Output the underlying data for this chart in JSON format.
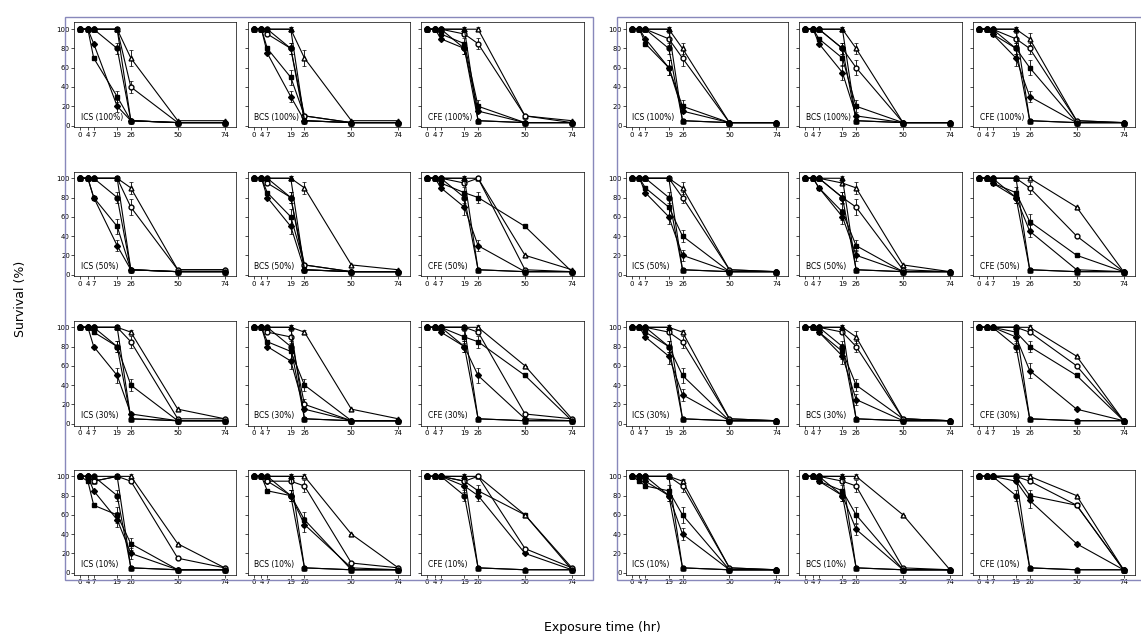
{
  "x_ticks": [
    0,
    4,
    7,
    19,
    26,
    50,
    74
  ],
  "x_vals": [
    0,
    4,
    7,
    19,
    26,
    50,
    74
  ],
  "ylabel": "Survival (%)",
  "xlabel": "Exposure time (hr)",
  "ylim": [
    -2,
    107
  ],
  "yticks": [
    0,
    20,
    40,
    60,
    80,
    100
  ],
  "concentrations": [
    "100",
    "50",
    "30",
    "10"
  ],
  "col_keys": [
    "ICS",
    "BCS",
    "CFE"
  ],
  "series_configs": [
    {
      "marker": "o",
      "mfc": "black",
      "mec": "black",
      "ms": 3.5,
      "ls": "-",
      "lw": 0.8
    },
    {
      "marker": "^",
      "mfc": "black",
      "mec": "black",
      "ms": 3.5,
      "ls": "-",
      "lw": 0.8
    },
    {
      "marker": "o",
      "mfc": "white",
      "mec": "black",
      "ms": 3.5,
      "ls": "-",
      "lw": 0.8
    },
    {
      "marker": "^",
      "mfc": "white",
      "mec": "black",
      "ms": 3.5,
      "ls": "-",
      "lw": 0.8
    },
    {
      "marker": "s",
      "mfc": "black",
      "mec": "black",
      "ms": 3.5,
      "ls": "-",
      "lw": 0.8
    },
    {
      "marker": "D",
      "mfc": "black",
      "mec": "black",
      "ms": 3.0,
      "ls": "-",
      "lw": 0.8
    }
  ],
  "box_color": "#8888bb",
  "left_data": {
    "ICS_100": [
      [
        100,
        100,
        100,
        80,
        5,
        3,
        3
      ],
      [
        100,
        100,
        100,
        100,
        5,
        3,
        3
      ],
      [
        100,
        100,
        100,
        100,
        40,
        3,
        3
      ],
      [
        100,
        100,
        100,
        100,
        70,
        5,
        5
      ],
      [
        100,
        100,
        70,
        30,
        5,
        3,
        3
      ],
      [
        100,
        100,
        85,
        20,
        5,
        3,
        3
      ]
    ],
    "BCS_100": [
      [
        100,
        100,
        100,
        80,
        5,
        3,
        3
      ],
      [
        100,
        100,
        100,
        100,
        5,
        3,
        3
      ],
      [
        100,
        100,
        95,
        80,
        10,
        3,
        3
      ],
      [
        100,
        100,
        100,
        100,
        70,
        5,
        5
      ],
      [
        100,
        100,
        80,
        50,
        10,
        3,
        3
      ],
      [
        100,
        100,
        75,
        30,
        5,
        3,
        3
      ]
    ],
    "CFE_100": [
      [
        100,
        100,
        100,
        80,
        5,
        3,
        3
      ],
      [
        100,
        100,
        100,
        100,
        5,
        3,
        3
      ],
      [
        100,
        100,
        100,
        95,
        85,
        10,
        3
      ],
      [
        100,
        100,
        100,
        100,
        100,
        10,
        5
      ],
      [
        100,
        100,
        95,
        85,
        20,
        3,
        3
      ],
      [
        100,
        100,
        90,
        80,
        15,
        3,
        3
      ]
    ],
    "ICS_50": [
      [
        100,
        100,
        100,
        80,
        5,
        3,
        3
      ],
      [
        100,
        100,
        100,
        100,
        5,
        3,
        3
      ],
      [
        100,
        100,
        100,
        100,
        70,
        5,
        5
      ],
      [
        100,
        100,
        100,
        100,
        90,
        5,
        5
      ],
      [
        100,
        100,
        80,
        50,
        5,
        3,
        3
      ],
      [
        100,
        100,
        80,
        30,
        5,
        3,
        3
      ]
    ],
    "BCS_50": [
      [
        100,
        100,
        100,
        80,
        5,
        3,
        3
      ],
      [
        100,
        100,
        100,
        100,
        5,
        3,
        3
      ],
      [
        100,
        100,
        95,
        80,
        10,
        3,
        3
      ],
      [
        100,
        100,
        100,
        100,
        90,
        10,
        5
      ],
      [
        100,
        100,
        85,
        60,
        10,
        3,
        3
      ],
      [
        100,
        100,
        80,
        50,
        5,
        3,
        3
      ]
    ],
    "CFE_50": [
      [
        100,
        100,
        100,
        80,
        5,
        3,
        3
      ],
      [
        100,
        100,
        100,
        100,
        5,
        3,
        3
      ],
      [
        100,
        100,
        100,
        95,
        100,
        5,
        3
      ],
      [
        100,
        100,
        100,
        100,
        100,
        20,
        5
      ],
      [
        100,
        100,
        95,
        85,
        80,
        50,
        3
      ],
      [
        100,
        100,
        90,
        70,
        30,
        3,
        3
      ]
    ],
    "ICS_30": [
      [
        100,
        100,
        100,
        80,
        5,
        3,
        3
      ],
      [
        100,
        100,
        100,
        100,
        5,
        3,
        3
      ],
      [
        100,
        100,
        100,
        100,
        85,
        5,
        5
      ],
      [
        100,
        100,
        100,
        100,
        95,
        15,
        5
      ],
      [
        100,
        100,
        95,
        80,
        40,
        3,
        3
      ],
      [
        100,
        100,
        80,
        50,
        10,
        3,
        3
      ]
    ],
    "BCS_30": [
      [
        100,
        100,
        100,
        80,
        5,
        3,
        3
      ],
      [
        100,
        100,
        100,
        100,
        5,
        3,
        3
      ],
      [
        100,
        100,
        95,
        90,
        20,
        3,
        3
      ],
      [
        100,
        100,
        100,
        100,
        95,
        15,
        5
      ],
      [
        100,
        100,
        85,
        75,
        40,
        3,
        3
      ],
      [
        100,
        100,
        80,
        65,
        15,
        3,
        3
      ]
    ],
    "CFE_30": [
      [
        100,
        100,
        100,
        80,
        5,
        3,
        3
      ],
      [
        100,
        100,
        100,
        100,
        5,
        3,
        3
      ],
      [
        100,
        100,
        100,
        100,
        95,
        10,
        5
      ],
      [
        100,
        100,
        100,
        100,
        100,
        60,
        5
      ],
      [
        100,
        100,
        100,
        90,
        85,
        50,
        3
      ],
      [
        100,
        100,
        95,
        80,
        50,
        5,
        3
      ]
    ],
    "ICS_10": [
      [
        100,
        100,
        100,
        80,
        5,
        3,
        3
      ],
      [
        100,
        100,
        100,
        100,
        5,
        3,
        3
      ],
      [
        100,
        100,
        95,
        100,
        95,
        15,
        5
      ],
      [
        100,
        100,
        95,
        100,
        100,
        30,
        5
      ],
      [
        100,
        95,
        70,
        60,
        30,
        3,
        3
      ],
      [
        100,
        100,
        85,
        55,
        20,
        3,
        3
      ]
    ],
    "BCS_10": [
      [
        100,
        100,
        100,
        80,
        5,
        3,
        3
      ],
      [
        100,
        100,
        100,
        100,
        5,
        3,
        3
      ],
      [
        100,
        100,
        95,
        95,
        90,
        10,
        5
      ],
      [
        100,
        100,
        100,
        100,
        100,
        40,
        5
      ],
      [
        100,
        100,
        85,
        80,
        55,
        3,
        3
      ],
      [
        100,
        100,
        95,
        80,
        50,
        5,
        3
      ]
    ],
    "CFE_10": [
      [
        100,
        100,
        100,
        80,
        5,
        3,
        3
      ],
      [
        100,
        100,
        100,
        100,
        5,
        3,
        3
      ],
      [
        100,
        100,
        100,
        95,
        100,
        25,
        5
      ],
      [
        100,
        100,
        100,
        100,
        100,
        60,
        5
      ],
      [
        100,
        100,
        100,
        95,
        85,
        60,
        3
      ],
      [
        100,
        100,
        100,
        90,
        80,
        20,
        3
      ]
    ]
  },
  "right_data": {
    "ICS_100": [
      [
        100,
        100,
        100,
        80,
        5,
        3,
        3
      ],
      [
        100,
        100,
        100,
        100,
        5,
        3,
        3
      ],
      [
        100,
        100,
        100,
        90,
        70,
        3,
        3
      ],
      [
        100,
        100,
        100,
        100,
        80,
        3,
        3
      ],
      [
        100,
        100,
        85,
        60,
        20,
        3,
        3
      ],
      [
        100,
        100,
        90,
        60,
        15,
        3,
        3
      ]
    ],
    "BCS_100": [
      [
        100,
        100,
        100,
        80,
        5,
        3,
        3
      ],
      [
        100,
        100,
        100,
        100,
        5,
        3,
        3
      ],
      [
        100,
        100,
        100,
        80,
        60,
        3,
        3
      ],
      [
        100,
        100,
        100,
        100,
        80,
        3,
        3
      ],
      [
        100,
        100,
        90,
        70,
        20,
        3,
        3
      ],
      [
        100,
        100,
        85,
        55,
        10,
        3,
        3
      ]
    ],
    "CFE_100": [
      [
        100,
        100,
        100,
        80,
        5,
        3,
        3
      ],
      [
        100,
        100,
        100,
        100,
        5,
        3,
        3
      ],
      [
        100,
        100,
        100,
        90,
        80,
        5,
        3
      ],
      [
        100,
        100,
        100,
        100,
        90,
        5,
        3
      ],
      [
        100,
        100,
        95,
        80,
        60,
        3,
        3
      ],
      [
        100,
        100,
        95,
        70,
        30,
        3,
        3
      ]
    ],
    "ICS_50": [
      [
        100,
        100,
        100,
        80,
        5,
        3,
        3
      ],
      [
        100,
        100,
        100,
        100,
        5,
        3,
        3
      ],
      [
        100,
        100,
        100,
        100,
        80,
        5,
        3
      ],
      [
        100,
        100,
        100,
        100,
        90,
        5,
        3
      ],
      [
        100,
        100,
        90,
        70,
        40,
        3,
        3
      ],
      [
        100,
        100,
        85,
        60,
        20,
        3,
        3
      ]
    ],
    "BCS_50": [
      [
        100,
        100,
        100,
        80,
        5,
        3,
        3
      ],
      [
        100,
        100,
        100,
        100,
        5,
        3,
        3
      ],
      [
        100,
        100,
        100,
        80,
        70,
        5,
        3
      ],
      [
        100,
        100,
        100,
        95,
        90,
        10,
        3
      ],
      [
        100,
        100,
        90,
        65,
        30,
        3,
        3
      ],
      [
        100,
        100,
        90,
        60,
        20,
        3,
        3
      ]
    ],
    "CFE_50": [
      [
        100,
        100,
        100,
        80,
        5,
        3,
        3
      ],
      [
        100,
        100,
        100,
        100,
        5,
        3,
        3
      ],
      [
        100,
        100,
        100,
        100,
        90,
        40,
        3
      ],
      [
        100,
        100,
        100,
        100,
        100,
        70,
        3
      ],
      [
        100,
        100,
        95,
        85,
        55,
        20,
        3
      ],
      [
        100,
        100,
        95,
        80,
        45,
        5,
        3
      ]
    ],
    "ICS_30": [
      [
        100,
        100,
        100,
        80,
        5,
        3,
        3
      ],
      [
        100,
        100,
        100,
        100,
        5,
        3,
        3
      ],
      [
        100,
        100,
        100,
        95,
        85,
        5,
        3
      ],
      [
        100,
        100,
        100,
        100,
        95,
        5,
        3
      ],
      [
        100,
        100,
        95,
        80,
        50,
        3,
        3
      ],
      [
        100,
        100,
        90,
        70,
        30,
        3,
        3
      ]
    ],
    "BCS_30": [
      [
        100,
        100,
        100,
        80,
        5,
        3,
        3
      ],
      [
        100,
        100,
        100,
        100,
        5,
        3,
        3
      ],
      [
        100,
        100,
        100,
        95,
        80,
        5,
        3
      ],
      [
        100,
        100,
        100,
        100,
        90,
        5,
        3
      ],
      [
        100,
        100,
        95,
        75,
        40,
        5,
        3
      ],
      [
        100,
        100,
        95,
        70,
        25,
        3,
        3
      ]
    ],
    "CFE_30": [
      [
        100,
        100,
        100,
        80,
        5,
        3,
        3
      ],
      [
        100,
        100,
        100,
        100,
        5,
        3,
        3
      ],
      [
        100,
        100,
        100,
        100,
        95,
        60,
        3
      ],
      [
        100,
        100,
        100,
        100,
        100,
        70,
        3
      ],
      [
        100,
        100,
        100,
        95,
        80,
        50,
        3
      ],
      [
        100,
        100,
        100,
        90,
        55,
        15,
        3
      ]
    ],
    "ICS_10": [
      [
        100,
        100,
        100,
        80,
        5,
        3,
        3
      ],
      [
        100,
        100,
        100,
        100,
        5,
        3,
        3
      ],
      [
        100,
        100,
        100,
        100,
        90,
        5,
        3
      ],
      [
        100,
        100,
        100,
        100,
        95,
        5,
        3
      ],
      [
        100,
        95,
        90,
        85,
        60,
        3,
        3
      ],
      [
        100,
        100,
        95,
        80,
        40,
        3,
        3
      ]
    ],
    "BCS_10": [
      [
        100,
        100,
        100,
        80,
        5,
        3,
        3
      ],
      [
        100,
        100,
        100,
        100,
        5,
        3,
        3
      ],
      [
        100,
        100,
        100,
        95,
        90,
        5,
        3
      ],
      [
        100,
        100,
        100,
        100,
        100,
        60,
        3
      ],
      [
        100,
        100,
        95,
        85,
        60,
        3,
        3
      ],
      [
        100,
        100,
        95,
        80,
        45,
        3,
        3
      ]
    ],
    "CFE_10": [
      [
        100,
        100,
        100,
        80,
        5,
        3,
        3
      ],
      [
        100,
        100,
        100,
        100,
        5,
        3,
        3
      ],
      [
        100,
        100,
        100,
        100,
        95,
        70,
        3
      ],
      [
        100,
        100,
        100,
        100,
        100,
        80,
        3
      ],
      [
        100,
        100,
        100,
        100,
        80,
        70,
        3
      ],
      [
        100,
        100,
        100,
        95,
        75,
        30,
        3
      ]
    ]
  }
}
